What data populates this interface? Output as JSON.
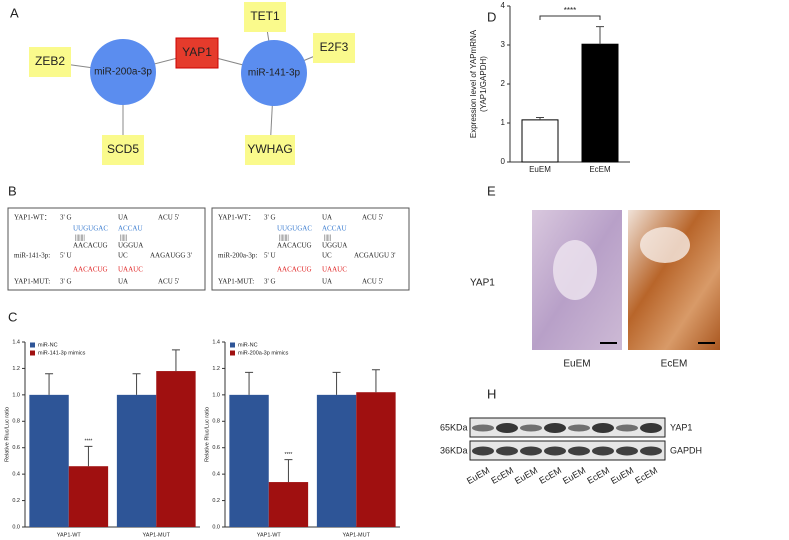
{
  "panel_labels": [
    "A",
    "B",
    "C",
    "D",
    "E",
    "H"
  ],
  "network": {
    "nodes": [
      "ZEB2",
      "miR-200a-3p",
      "YAP1",
      "miR-141-3p",
      "TET1",
      "E2F3",
      "SCD5",
      "YWHAG"
    ]
  },
  "sequences": [
    {
      "wt_label": "YAP1-WT：",
      "wt": [
        "3' G",
        "UA",
        "ACU 5'"
      ],
      "wt_site": [
        "UUGUGAC",
        "ACCAU"
      ],
      "pairs": [
        "|||||||",
        "|||||"
      ],
      "mirna_site": [
        "AACACUG",
        "UGGUA"
      ],
      "mirna_label": "miR-141-3p:",
      "mirna": [
        "5' U",
        "UC",
        "AAGAUGG 3'"
      ],
      "mut_site": [
        "AACACUG",
        "UAAUC"
      ],
      "mut_label": "YAP1-MUT:",
      "mut": [
        "3' G",
        "UA",
        "ACU 5'"
      ]
    },
    {
      "wt_label": "YAP1-WT：",
      "wt": [
        "3' G",
        "UA",
        "ACU 5'"
      ],
      "wt_site": [
        "UUGUGAC",
        "ACCAU"
      ],
      "pairs": [
        "|||||||",
        "|||||"
      ],
      "mirna_site": [
        "AACACUG",
        "UGGUA"
      ],
      "mirna_label": "miR-200a-3p:",
      "mirna": [
        "5' U",
        "UC",
        "ACGAUGU 3'"
      ],
      "mut_site": [
        "AACACUG",
        "UAAUC"
      ],
      "mut_label": "YAP1-MUT:",
      "mut": [
        "3' G",
        "UA",
        "ACU 5'"
      ]
    }
  ],
  "chart_data": [
    {
      "type": "bar",
      "ylabel": [
        "Relative Rluc/Luc ratio"
      ],
      "categories": [
        "YAP1-WT",
        "YAP1-MUT"
      ],
      "series": [
        {
          "name": "miR-NC",
          "color": "#2e5597",
          "values": [
            1.0,
            1.0
          ],
          "errors": [
            0.16,
            0.16
          ]
        },
        {
          "name": "miR-141-3p mimics",
          "color": "#a01010",
          "values": [
            0.46,
            1.18
          ],
          "errors": [
            0.15,
            0.16
          ]
        }
      ],
      "annotation": "****",
      "legend": "upper left",
      "ylim": [
        0,
        1.4
      ],
      "yticks": [
        {
          "value": 0,
          "label": "0.0"
        },
        0.2,
        0.4,
        0.6,
        0.8,
        {
          "value": 1,
          "label": "1.0"
        },
        1.2,
        1.4
      ]
    },
    {
      "type": "bar",
      "ylabel": [
        "Relative Rluc/Luc ratio"
      ],
      "categories": [
        "YAP1-WT",
        "YAP1-MUT"
      ],
      "series": [
        {
          "name": "miR-NC",
          "color": "#2e5597",
          "values": [
            1.0,
            1.0
          ],
          "errors": [
            0.17,
            0.17
          ]
        },
        {
          "name": "miR-200a-3p mimics",
          "color": "#a01010",
          "values": [
            0.34,
            1.02
          ],
          "errors": [
            0.17,
            0.17
          ]
        }
      ],
      "annotation": "****",
      "legend": "upper left",
      "ylim": [
        0,
        1.4
      ],
      "yticks": [
        {
          "value": 0,
          "label": "0.0"
        },
        0.2,
        0.4,
        0.6,
        0.8,
        {
          "value": 1,
          "label": "1.0"
        },
        1.2,
        1.4
      ]
    },
    {
      "type": "bar",
      "ylabel": [
        "Expression level of YAPmRNA",
        "(YAP1/GAPDH)"
      ],
      "categories": [
        "EuEM",
        "EcEM"
      ],
      "series": [
        {
          "colors": [
            "#ffffff",
            "#000000"
          ],
          "values": [
            1.08,
            3.02
          ],
          "errors": [
            0.06,
            0.45
          ]
        }
      ],
      "annotation": "****",
      "ylim": [
        0,
        4
      ],
      "yticks": [
        0,
        1,
        2,
        3,
        4
      ]
    }
  ],
  "ihc": {
    "row_label": "YAP1",
    "columns": [
      "EuEM",
      "EcEM"
    ]
  },
  "western": {
    "markers": [
      "65KDa",
      "36KDa"
    ],
    "proteins": [
      "YAP1",
      "GAPDH"
    ],
    "lanes": [
      "EuEM",
      "EcEM",
      "EuEM",
      "EcEM",
      "EuEM",
      "EcEM",
      "EuEM",
      "EcEM"
    ]
  }
}
